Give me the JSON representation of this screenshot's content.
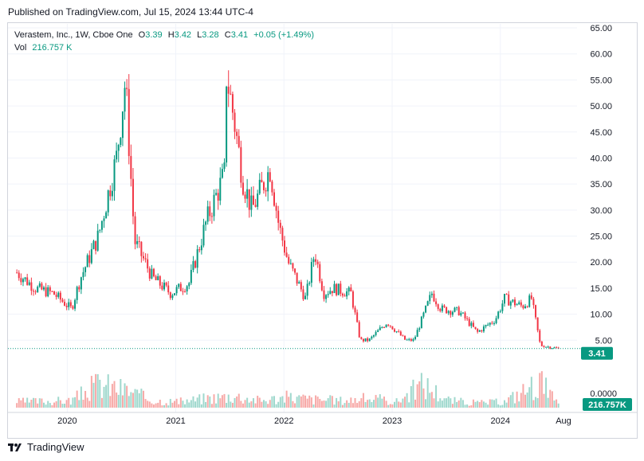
{
  "published": "Published on TradingView.com, Jul 15, 2024 13:44 UTC-4",
  "legend": {
    "name": "Verastem, Inc., 1W, Cboe One",
    "o_label": "O",
    "o_value": "3.39",
    "h_label": "H",
    "h_value": "3.42",
    "l_label": "L",
    "l_value": "3.28",
    "c_label": "C",
    "c_value": "3.41",
    "change": "+0.05 (+1.49%)",
    "vol_label": "Vol",
    "vol_value": "216.757 K"
  },
  "branding": "TradingView",
  "colors": {
    "up": "#089981",
    "down": "#f23645",
    "vol_up": "#9fd8cd",
    "vol_down": "#f7a9a7",
    "grid": "#f0f3fa",
    "text": "#131722"
  },
  "chart_data": {
    "type": "candlestick",
    "ylim": [
      0,
      65
    ],
    "yticks": [
      "65.00",
      "60.00",
      "55.00",
      "50.00",
      "45.00",
      "40.00",
      "35.00",
      "30.00",
      "25.00",
      "20.00",
      "15.00",
      "10.00",
      "5.00"
    ],
    "xticks": [
      "2020",
      "2021",
      "2022",
      "2023",
      "2024",
      "Aug"
    ],
    "last_price_label": "3.41",
    "last_price": 3.41,
    "volume_zero_label": "0.0000",
    "volume_label": "216.757K",
    "close_series": {
      "x": [
        "2019-07",
        "2019-09",
        "2019-11",
        "2020-01",
        "2020-02",
        "2020-04",
        "2020-06",
        "2020-07",
        "2020-08",
        "2020-10",
        "2020-12",
        "2021-02",
        "2021-04",
        "2021-06",
        "2021-06",
        "2021-07",
        "2021-08",
        "2021-09",
        "2021-11",
        "2021-12",
        "2022-01",
        "2022-03",
        "2022-04",
        "2022-05",
        "2022-06",
        "2022-08",
        "2022-09",
        "2022-10",
        "2022-12",
        "2023-02",
        "2023-03",
        "2023-05",
        "2023-06",
        "2023-08",
        "2023-10",
        "2023-12",
        "2024-01",
        "2024-03",
        "2024-04",
        "2024-05",
        "2024-07"
      ],
      "y": [
        18,
        15,
        14,
        11,
        17,
        25,
        40,
        55,
        24,
        17,
        14,
        16,
        28,
        37,
        58,
        48,
        36,
        30,
        38,
        27,
        20,
        13,
        22,
        14,
        15,
        14,
        5,
        5,
        8.5,
        5,
        5,
        14,
        11,
        10.5,
        6.5,
        9,
        13,
        11.5,
        13,
        4,
        3.41
      ]
    },
    "volume_series": {
      "x": [
        "2019-07",
        "2020-01",
        "2020-04",
        "2020-07",
        "2020-10",
        "2021-01",
        "2021-04",
        "2021-07",
        "2021-10",
        "2022-01",
        "2022-04",
        "2022-07",
        "2022-10",
        "2023-01",
        "2023-04",
        "2023-07",
        "2023-10",
        "2024-01",
        "2024-05",
        "2024-07"
      ],
      "y": [
        0.5,
        0.6,
        2.0,
        1.5,
        0.6,
        0.5,
        0.8,
        1.0,
        0.6,
        0.9,
        0.7,
        0.6,
        0.8,
        0.5,
        2.0,
        0.6,
        0.4,
        0.5,
        2.2,
        0.216757
      ]
    }
  }
}
